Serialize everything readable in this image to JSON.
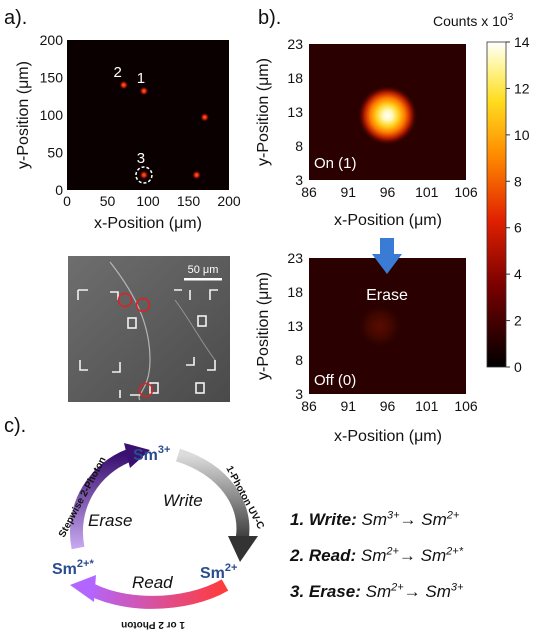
{
  "panel_labels": {
    "a": "a).",
    "b": "b).",
    "c": "c)."
  },
  "colorbar": {
    "title": "Counts x 10",
    "title_sup": "3",
    "ticks": [
      "14",
      "12",
      "10",
      "8",
      "6",
      "4",
      "2",
      "0"
    ]
  },
  "chart_data": [
    {
      "type": "scatter",
      "panel": "a",
      "xlabel": "x-Position (μm)",
      "ylabel": "y-Position (μm)",
      "xlim": [
        0,
        200
      ],
      "ylim": [
        0,
        200
      ],
      "xticks": [
        "0",
        "50",
        "100",
        "150",
        "200"
      ],
      "yticks": [
        "0",
        "50",
        "100",
        "150",
        "200"
      ],
      "points": [
        {
          "label": "1",
          "x": 95,
          "y": 132
        },
        {
          "label": "2",
          "x": 70,
          "y": 140
        },
        {
          "label": "",
          "x": 170,
          "y": 97
        },
        {
          "label": "3",
          "x": 95,
          "y": 20
        },
        {
          "label": "",
          "x": 160,
          "y": 20
        }
      ]
    },
    {
      "type": "heatmap",
      "panel": "b-top",
      "annotation": "On (1)",
      "xlabel": "x-Position (μm)",
      "ylabel": "y-Position (μm)",
      "xlim": [
        86,
        106
      ],
      "ylim": [
        3,
        23
      ],
      "xticks": [
        "86",
        "91",
        "96",
        "101",
        "106"
      ],
      "yticks": [
        "23",
        "18",
        "13",
        "8",
        "3"
      ],
      "spot": {
        "x": 96,
        "y": 12.5,
        "peak": 14
      }
    },
    {
      "type": "heatmap",
      "panel": "b-bottom",
      "annotation": "Off (0)",
      "xlabel": "x-Position (μm)",
      "ylabel": "y-Position (μm)",
      "xlim": [
        86,
        106
      ],
      "ylim": [
        3,
        23
      ],
      "xticks": [
        "86",
        "91",
        "96",
        "101",
        "106"
      ],
      "yticks": [
        "23",
        "18",
        "13",
        "8",
        "3"
      ],
      "spot": {
        "x": 95,
        "y": 13,
        "peak": 2
      }
    }
  ],
  "sem_image": {
    "scale_bar": "50 μm"
  },
  "arrow_label": "Erase",
  "cycle": {
    "top": {
      "base": "Sm",
      "sup": "3+"
    },
    "right": {
      "base": "Sm",
      "sup": "2+"
    },
    "left": {
      "base": "Sm",
      "sup": "2+*"
    },
    "write": "Write",
    "erase": "Erase",
    "read": "Read",
    "write_path": "1-Photon UV-C",
    "erase_path": "Stepwise 2-Photon",
    "read_path": "1 or 2 Photon"
  },
  "steps": [
    {
      "head": "1. Write:",
      "a": "Sm",
      "a_sup": "3+",
      "b": "Sm",
      "b_sup": "2+"
    },
    {
      "head": "2. Read:",
      "a": "Sm",
      "a_sup": "2+",
      "b": "Sm",
      "b_sup": "2+*"
    },
    {
      "head": "3. Erase:",
      "a": "Sm",
      "a_sup": "2+",
      "b": "Sm",
      "b_sup": "3+"
    }
  ]
}
